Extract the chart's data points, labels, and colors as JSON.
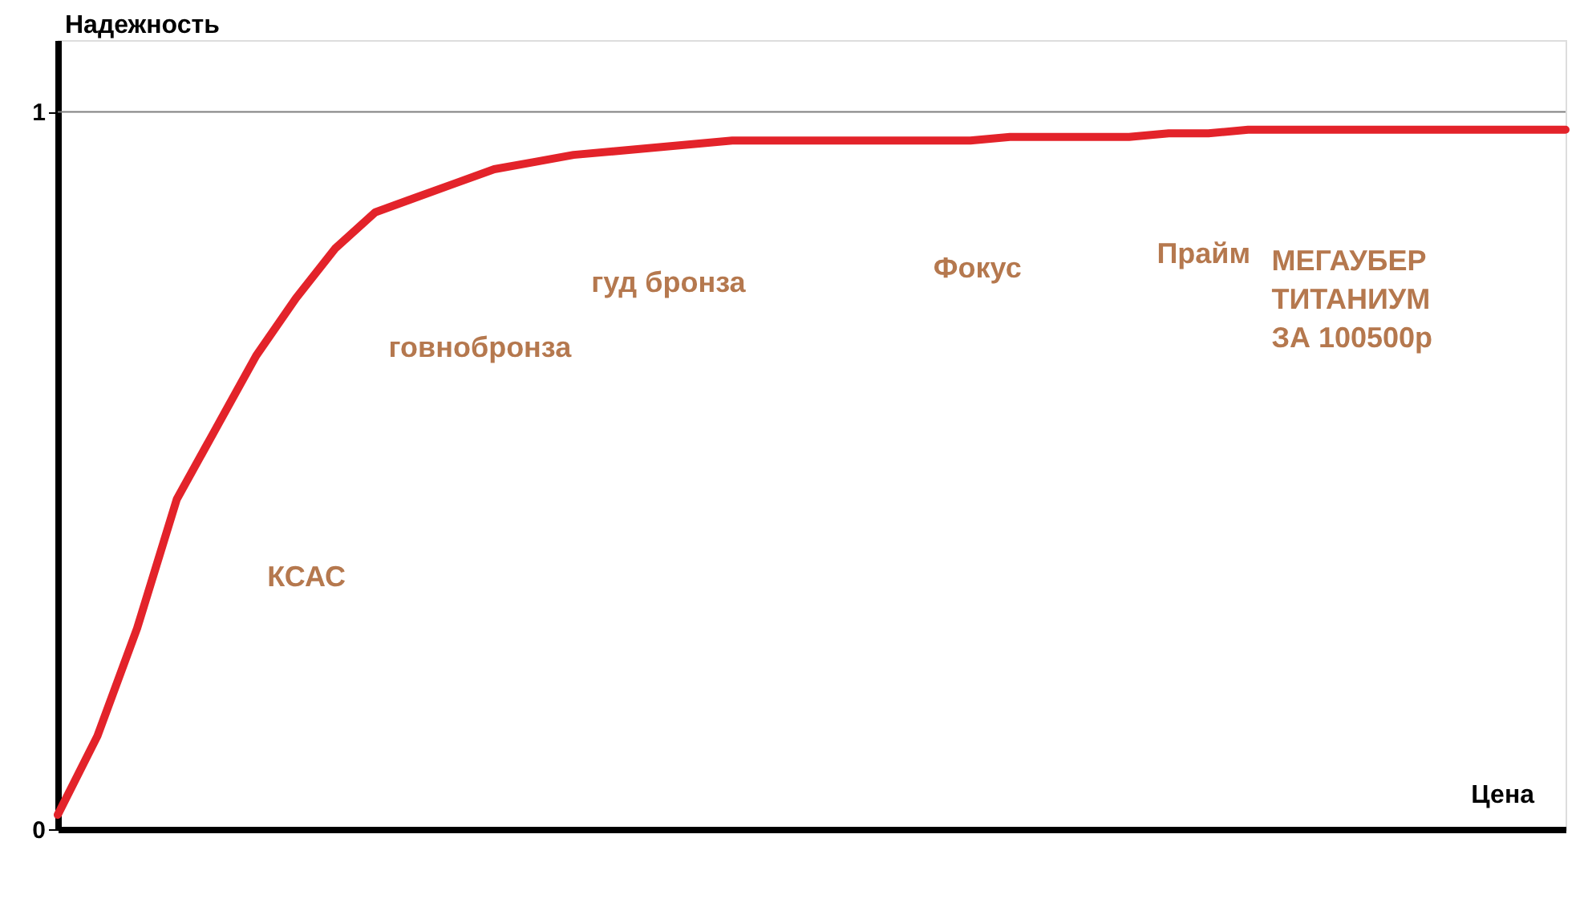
{
  "chart_data": {
    "type": "line",
    "xlabel": "Цена",
    "ylabel": "Надежность",
    "categories": [
      null,
      null,
      null,
      null,
      null,
      null,
      null,
      null,
      null,
      null,
      null,
      null,
      null,
      null,
      null,
      null,
      null,
      null,
      null,
      null,
      null,
      null,
      null,
      null,
      null,
      null,
      null,
      null,
      null,
      null,
      null,
      null,
      null,
      null,
      null,
      null,
      null,
      null,
      null
    ],
    "series": [
      {
        "color": "#e3232a",
        "values": [
          0.02,
          0.13,
          0.28,
          0.46,
          0.56,
          0.66,
          0.74,
          0.81,
          0.86,
          0.88,
          0.9,
          0.92,
          0.93,
          0.94,
          0.945,
          0.95,
          0.955,
          0.96,
          0.96,
          0.96,
          0.96,
          0.96,
          0.96,
          0.96,
          0.965,
          0.965,
          0.965,
          0.965,
          0.97,
          0.97,
          0.975,
          0.975,
          0.975,
          0.975,
          0.975,
          0.975,
          0.975,
          0.975,
          0.975
        ]
      }
    ],
    "ylim": [
      0,
      1.1
    ],
    "yticks": [
      0,
      1
    ],
    "ref_lines": [
      {
        "axis": "y",
        "value": 1,
        "color": "#808080"
      }
    ],
    "annotations": [
      "КСАС",
      "говнобронза",
      "гуд бронза",
      "Фокус",
      "Прайм",
      "МЕГАУБЕР\nТИТАНИУМ\nЗА 100500р"
    ],
    "grid": false,
    "marker": "none",
    "line_style": "solid"
  }
}
